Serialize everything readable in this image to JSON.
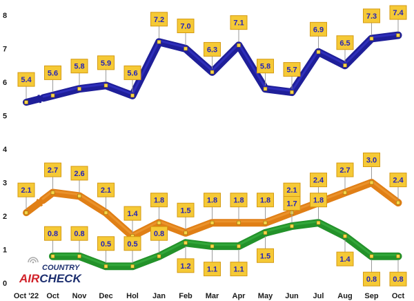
{
  "chart_data": {
    "type": "line",
    "categories": [
      "Oct '22",
      "Oct",
      "Nov",
      "Dec",
      "Hol",
      "Jan",
      "Feb",
      "Mar",
      "Apr",
      "May",
      "Jun",
      "Jul",
      "Aug",
      "Sep",
      "Oct"
    ],
    "ylim": [
      0,
      8
    ],
    "yticks": [
      "0",
      "1",
      "2",
      "3",
      "4",
      "5",
      "6",
      "7",
      "8"
    ],
    "grid": false,
    "series": [
      {
        "color": "#1f1f99",
        "highlight": "#3b3bd6",
        "values": [
          5.4,
          5.6,
          5.8,
          5.9,
          5.6,
          7.2,
          7.0,
          6.3,
          7.1,
          5.8,
          5.7,
          6.9,
          6.5,
          7.3,
          7.4
        ],
        "labels": [
          "5.4",
          "5.6",
          "5.8",
          "5.9",
          "5.6",
          "7.2",
          "7.0",
          "6.3",
          "7.1",
          "5.8",
          "5.7",
          "6.9",
          "6.5",
          "7.3",
          "7.4"
        ],
        "label_position": "above",
        "break_after_first": true
      },
      {
        "color": "#e07f16",
        "highlight": "#f2a23e",
        "values": [
          2.1,
          2.7,
          2.6,
          2.1,
          1.4,
          1.8,
          1.5,
          1.8,
          1.8,
          1.8,
          2.1,
          2.4,
          2.7,
          3.0,
          2.4
        ],
        "labels": [
          "2.1",
          "2.7",
          "2.6",
          "2.1",
          "1.4",
          "1.8",
          "1.5",
          "1.8",
          "1.8",
          "1.8",
          "2.1",
          "2.4",
          "2.7",
          "3.0",
          "2.4"
        ],
        "label_position": "above",
        "break_after_first": true
      },
      {
        "color": "#23922a",
        "highlight": "#3fb847",
        "values": [
          null,
          0.8,
          0.8,
          0.5,
          0.5,
          0.8,
          1.2,
          1.1,
          1.1,
          1.5,
          1.7,
          1.8,
          1.4,
          0.8,
          0.8
        ],
        "labels": [
          null,
          "0.8",
          "0.8",
          "0.5",
          "0.5",
          "0.8",
          "1.2",
          "1.1",
          "1.1",
          "1.5",
          "1.7",
          "1.8",
          "1.4",
          "0.8",
          "0.8"
        ],
        "label_position": "mixed",
        "label_sides": [
          null,
          "above",
          "above",
          "above",
          "above",
          "above",
          "below",
          "below",
          "below",
          "below",
          "above",
          "above",
          "below",
          "below",
          "below"
        ],
        "break_after_first": false
      }
    ]
  },
  "logo": {
    "line1": "COUNTRY",
    "line2a": "AIR",
    "line2b": "CHECK",
    "color_dark": "#1d2f6f",
    "color_red": "#d1222a"
  }
}
